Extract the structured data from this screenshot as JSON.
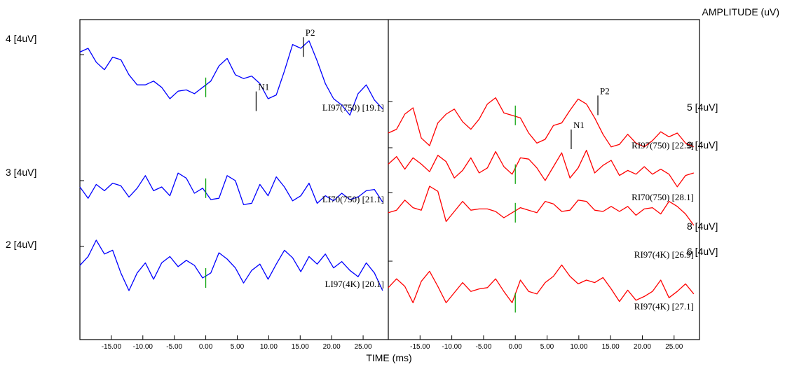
{
  "chart_data": {
    "type": "line",
    "axis_title_amplitude": "AMPLITUDE (uV)",
    "xlabel": "TIME (ms)",
    "x_range_ms": [
      -20,
      29
    ],
    "x_ticks": [
      -15,
      -10,
      -5,
      0,
      5,
      10,
      15,
      20,
      25
    ],
    "x_tick_labels": [
      "-15.00",
      "-10.00",
      "-5.00",
      "0.00",
      "5.00",
      "10.00",
      "15.00",
      "20.00",
      "25.00"
    ],
    "panels": [
      {
        "side": "left",
        "color": "#0000ff",
        "scale_labels": [
          "4 [4uV]",
          "3 [4uV]",
          "2 [4uV]"
        ],
        "traces": [
          {
            "label": "LI97(750) [19.1]",
            "y": [
              0.2,
              0.5,
              -0.6,
              -1.2,
              -0.2,
              -0.4,
              -1.6,
              -2.4,
              -2.4,
              -2.1,
              -2.6,
              -3.5,
              -2.9,
              -2.8,
              -3.1,
              -2.6,
              -2.1,
              -0.9,
              -0.3,
              -1.6,
              -1.9,
              -1.7,
              -2.3,
              -3.5,
              -3.2,
              -1.3,
              0.8,
              0.5,
              1.1,
              -0.5,
              -2.3,
              -3.5,
              -4.0,
              -4.8,
              -3.1,
              -2.4,
              -3.6,
              -4.3
            ],
            "x_step_ms": 1.3,
            "peaks": [
              {
                "name": "N1",
                "x": 8.0,
                "y": -3.7
              },
              {
                "name": "P2",
                "x": 15.5,
                "y": 0.6
              }
            ]
          },
          {
            "label": "LI70(750) [21.1]",
            "y": [
              -0.5,
              -1.4,
              -0.3,
              -0.8,
              -0.2,
              -0.4,
              -1.3,
              -0.6,
              0.4,
              -0.8,
              -0.5,
              -1.2,
              0.6,
              0.2,
              -1.0,
              -0.6,
              -1.5,
              -1.4,
              0.4,
              0.0,
              -1.9,
              -1.8,
              -0.3,
              -1.2,
              0.3,
              -0.5,
              -1.6,
              -1.2,
              -0.2,
              -1.8,
              -1.2,
              -1.6,
              -1.0,
              -1.5,
              -1.3,
              -0.8,
              -0.7,
              -1.7
            ],
            "x_step_ms": 1.3,
            "peaks": []
          },
          {
            "label": "LI97(4K) [20.1]",
            "y": [
              -1.5,
              -0.8,
              0.5,
              -0.6,
              -0.3,
              -2.1,
              -3.5,
              -2.1,
              -1.3,
              -2.6,
              -1.3,
              -0.8,
              -1.6,
              -1.1,
              -1.5,
              -2.5,
              -2.1,
              -0.5,
              -1.0,
              -1.7,
              -2.9,
              -1.9,
              -1.4,
              -2.6,
              -1.4,
              -0.3,
              -0.9,
              -2.0,
              -0.8,
              -1.4,
              -0.6,
              -1.7,
              -1.2,
              -1.9,
              -2.4,
              -1.3,
              -2.1,
              -3.5
            ],
            "x_step_ms": 1.3,
            "peaks": []
          }
        ]
      },
      {
        "side": "right",
        "color": "#ff0000",
        "scale_labels": [
          "5 [4uV]",
          "9 [4uV]",
          "8 [4uV]",
          "6 [4uV]"
        ],
        "traces": [
          {
            "label": "RI97(750) [22.9]",
            "y": [
              -2.5,
              -2.2,
              -1.0,
              -0.5,
              -2.9,
              -3.5,
              -1.7,
              -1.0,
              -0.6,
              -1.6,
              -2.2,
              -1.4,
              -0.2,
              0.3,
              -0.9,
              -1.1,
              -1.3,
              -2.5,
              -3.3,
              -3.0,
              -1.9,
              -1.7,
              -0.7,
              0.2,
              -0.2,
              -1.3,
              -2.6,
              -3.6,
              -3.4,
              -2.6,
              -3.3,
              -3.6,
              -3.1,
              -2.4,
              -2.8,
              -2.5,
              -3.3,
              -3.6
            ],
            "x_step_ms": 1.3,
            "peaks": [
              {
                "name": "N1",
                "x": 8.8,
                "y": -3.0
              },
              {
                "name": "P2",
                "x": 13.0,
                "y": -0.3
              }
            ]
          },
          {
            "label": "RI70(750) [28.1]",
            "y": [
              -1.3,
              -0.7,
              -1.7,
              -0.8,
              -1.3,
              -1.9,
              -0.6,
              -1.1,
              -2.4,
              -1.8,
              -0.8,
              -2.0,
              -1.6,
              -0.3,
              -1.5,
              -2.1,
              -0.8,
              -0.9,
              -1.6,
              -2.6,
              -1.5,
              -0.4,
              -2.4,
              -1.6,
              -0.2,
              -2.0,
              -1.4,
              -1.0,
              -2.2,
              -1.8,
              -2.1,
              -1.5,
              -2.1,
              -1.7,
              -2.1,
              -3.1,
              -2.2,
              -2.0
            ],
            "x_step_ms": 1.3,
            "peaks": []
          },
          {
            "label": "RI97(4K) [26.9]",
            "y": [
              -1.6,
              -1.4,
              -0.6,
              -1.2,
              -1.4,
              0.5,
              0.1,
              -2.3,
              -1.5,
              -0.7,
              -1.4,
              -1.3,
              -1.3,
              -1.5,
              -2.0,
              -1.6,
              -1.2,
              -1.4,
              -1.6,
              -0.7,
              -0.9,
              -1.5,
              -1.4,
              -0.6,
              -0.7,
              -1.4,
              -1.5,
              -1.1,
              -1.5,
              -1.1,
              -1.8,
              -1.3,
              -1.2,
              -1.7,
              -0.7,
              -1.1,
              -1.7,
              -2.6
            ],
            "x_step_ms": 1.3,
            "peaks": []
          },
          {
            "label": "RI97(4K) [27.1]",
            "y": [
              -2.1,
              -1.4,
              -2.0,
              -3.3,
              -1.6,
              -0.8,
              -2.0,
              -3.3,
              -2.5,
              -1.7,
              -2.4,
              -2.2,
              -2.1,
              -1.4,
              -2.4,
              -3.3,
              -1.5,
              -2.4,
              -2.6,
              -1.7,
              -1.2,
              -0.3,
              -1.2,
              -1.8,
              -1.5,
              -1.7,
              -1.3,
              -2.2,
              -3.2,
              -2.3,
              -3.1,
              -2.8,
              -2.4,
              -1.5,
              -2.9,
              -2.4,
              -1.8,
              -2.6
            ],
            "x_step_ms": 1.3,
            "peaks": []
          }
        ]
      }
    ]
  }
}
